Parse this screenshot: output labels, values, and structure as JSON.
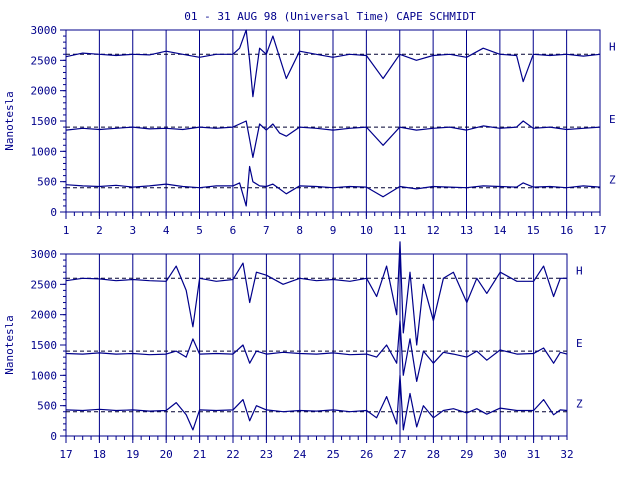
{
  "chart_data": {
    "type": "line",
    "title": "01 - 31 AUG 98 (Universal Time) CAPE SCHMIDT",
    "ylabel": "Nanotesla",
    "line_color": "#00008b",
    "ylim": [
      0,
      3000
    ],
    "y_ticks": [
      "0",
      "500",
      "1000",
      "1500",
      "2000",
      "2500",
      "3000"
    ],
    "series_names": [
      "H",
      "E",
      "Z"
    ],
    "baselines": {
      "H": 2600,
      "E": 1400,
      "Z": 400
    },
    "panels": [
      {
        "xlim": [
          1,
          17
        ],
        "x_ticks": [
          "1",
          "2",
          "3",
          "4",
          "5",
          "6",
          "7",
          "8",
          "9",
          "10",
          "11",
          "12",
          "13",
          "14",
          "15",
          "16",
          "17"
        ],
        "series": [
          {
            "name": "H",
            "x": [
              1,
              1.5,
              2,
              2.5,
              3,
              3.5,
              4,
              4.5,
              5,
              5.5,
              6,
              6.2,
              6.4,
              6.5,
              6.6,
              6.8,
              7,
              7.2,
              7.4,
              7.6,
              8,
              8.5,
              9,
              9.5,
              10,
              10.5,
              11,
              11.5,
              12,
              12.5,
              13,
              13.5,
              14,
              14.5,
              14.7,
              15,
              15.5,
              16,
              16.5,
              17
            ],
            "y": [
              2560,
              2620,
              2600,
              2580,
              2600,
              2590,
              2650,
              2600,
              2550,
              2600,
              2600,
              2700,
              3000,
              2500,
              1900,
              2700,
              2600,
              2900,
              2550,
              2200,
              2650,
              2600,
              2550,
              2600,
              2580,
              2200,
              2600,
              2500,
              2580,
              2600,
              2550,
              2700,
              2600,
              2580,
              2150,
              2600,
              2580,
              2600,
              2570,
              2600
            ]
          },
          {
            "name": "E",
            "x": [
              1,
              1.5,
              2,
              2.5,
              3,
              3.5,
              4,
              4.5,
              5,
              5.5,
              6,
              6.2,
              6.4,
              6.5,
              6.6,
              6.8,
              7,
              7.2,
              7.4,
              7.6,
              8,
              8.5,
              9,
              9.5,
              10,
              10.5,
              11,
              11.5,
              12,
              12.5,
              13,
              13.5,
              14,
              14.5,
              14.7,
              15,
              15.5,
              16,
              16.5,
              17
            ],
            "y": [
              1350,
              1380,
              1360,
              1380,
              1400,
              1370,
              1380,
              1360,
              1400,
              1380,
              1400,
              1450,
              1500,
              1200,
              900,
              1450,
              1350,
              1450,
              1300,
              1250,
              1400,
              1380,
              1350,
              1380,
              1400,
              1100,
              1400,
              1350,
              1380,
              1400,
              1350,
              1420,
              1380,
              1400,
              1500,
              1380,
              1400,
              1360,
              1380,
              1400
            ]
          },
          {
            "name": "Z",
            "x": [
              1,
              1.5,
              2,
              2.5,
              3,
              3.5,
              4,
              4.5,
              5,
              5.5,
              6,
              6.2,
              6.4,
              6.5,
              6.6,
              6.8,
              7,
              7.2,
              7.4,
              7.6,
              8,
              8.5,
              9,
              9.5,
              10,
              10.5,
              11,
              11.5,
              12,
              12.5,
              13,
              13.5,
              14,
              14.5,
              14.7,
              15,
              15.5,
              16,
              16.5,
              17
            ],
            "y": [
              450,
              430,
              420,
              440,
              410,
              430,
              460,
              420,
              400,
              430,
              430,
              480,
              100,
              750,
              500,
              430,
              420,
              460,
              380,
              300,
              430,
              420,
              400,
              420,
              410,
              250,
              420,
              380,
              420,
              410,
              400,
              430,
              420,
              410,
              480,
              410,
              420,
              400,
              430,
              410
            ]
          }
        ]
      },
      {
        "xlim": [
          17,
          32
        ],
        "x_ticks": [
          "17",
          "18",
          "19",
          "20",
          "21",
          "22",
          "23",
          "24",
          "25",
          "26",
          "27",
          "28",
          "29",
          "30",
          "31",
          "32"
        ],
        "series": [
          {
            "name": "H",
            "x": [
              17,
              17.5,
              18,
              18.5,
              19,
              19.5,
              20,
              20.3,
              20.6,
              20.8,
              21,
              21.5,
              22,
              22.3,
              22.5,
              22.7,
              23,
              23.5,
              24,
              24.5,
              25,
              25.5,
              26,
              26.3,
              26.6,
              26.9,
              27,
              27.1,
              27.3,
              27.5,
              27.7,
              28,
              28.3,
              28.6,
              29,
              29.3,
              29.6,
              30,
              30.5,
              31,
              31.3,
              31.6,
              31.8,
              32
            ],
            "y": [
              2560,
              2600,
              2590,
              2560,
              2580,
              2560,
              2550,
              2800,
              2400,
              1800,
              2600,
              2550,
              2580,
              2850,
              2200,
              2700,
              2650,
              2500,
              2600,
              2560,
              2580,
              2550,
              2600,
              2300,
              2800,
              2000,
              3200,
              1700,
              2700,
              1500,
              2500,
              1900,
              2600,
              2700,
              2200,
              2600,
              2350,
              2700,
              2550,
              2550,
              2800,
              2300,
              2600,
              2600
            ]
          },
          {
            "name": "E",
            "x": [
              17,
              17.5,
              18,
              18.5,
              19,
              19.5,
              20,
              20.3,
              20.6,
              20.8,
              21,
              21.5,
              22,
              22.3,
              22.5,
              22.7,
              23,
              23.5,
              24,
              24.5,
              25,
              25.5,
              26,
              26.3,
              26.6,
              26.9,
              27,
              27.1,
              27.3,
              27.5,
              27.7,
              28,
              28.3,
              28.6,
              29,
              29.3,
              29.6,
              30,
              30.5,
              31,
              31.3,
              31.6,
              31.8,
              32
            ],
            "y": [
              1360,
              1350,
              1370,
              1350,
              1360,
              1340,
              1350,
              1400,
              1300,
              1600,
              1350,
              1360,
              1350,
              1500,
              1200,
              1400,
              1350,
              1380,
              1360,
              1350,
              1370,
              1340,
              1350,
              1300,
              1500,
              1200,
              1900,
              1000,
              1600,
              900,
              1400,
              1200,
              1380,
              1350,
              1300,
              1400,
              1250,
              1420,
              1350,
              1360,
              1450,
              1200,
              1380,
              1350
            ]
          },
          {
            "name": "Z",
            "x": [
              17,
              17.5,
              18,
              18.5,
              19,
              19.5,
              20,
              20.3,
              20.6,
              20.8,
              21,
              21.5,
              22,
              22.3,
              22.5,
              22.7,
              23,
              23.5,
              24,
              24.5,
              25,
              25.5,
              26,
              26.3,
              26.6,
              26.9,
              27,
              27.1,
              27.3,
              27.5,
              27.7,
              28,
              28.3,
              28.6,
              29,
              29.3,
              29.6,
              30,
              30.5,
              31,
              31.3,
              31.6,
              31.8,
              32
            ],
            "y": [
              430,
              420,
              440,
              420,
              430,
              410,
              420,
              550,
              350,
              100,
              430,
              420,
              430,
              600,
              250,
              500,
              430,
              400,
              420,
              410,
              430,
              400,
              420,
              300,
              650,
              200,
              1000,
              100,
              700,
              150,
              500,
              300,
              420,
              450,
              380,
              450,
              360,
              460,
              420,
              420,
              600,
              350,
              430,
              420
            ]
          }
        ]
      }
    ]
  }
}
